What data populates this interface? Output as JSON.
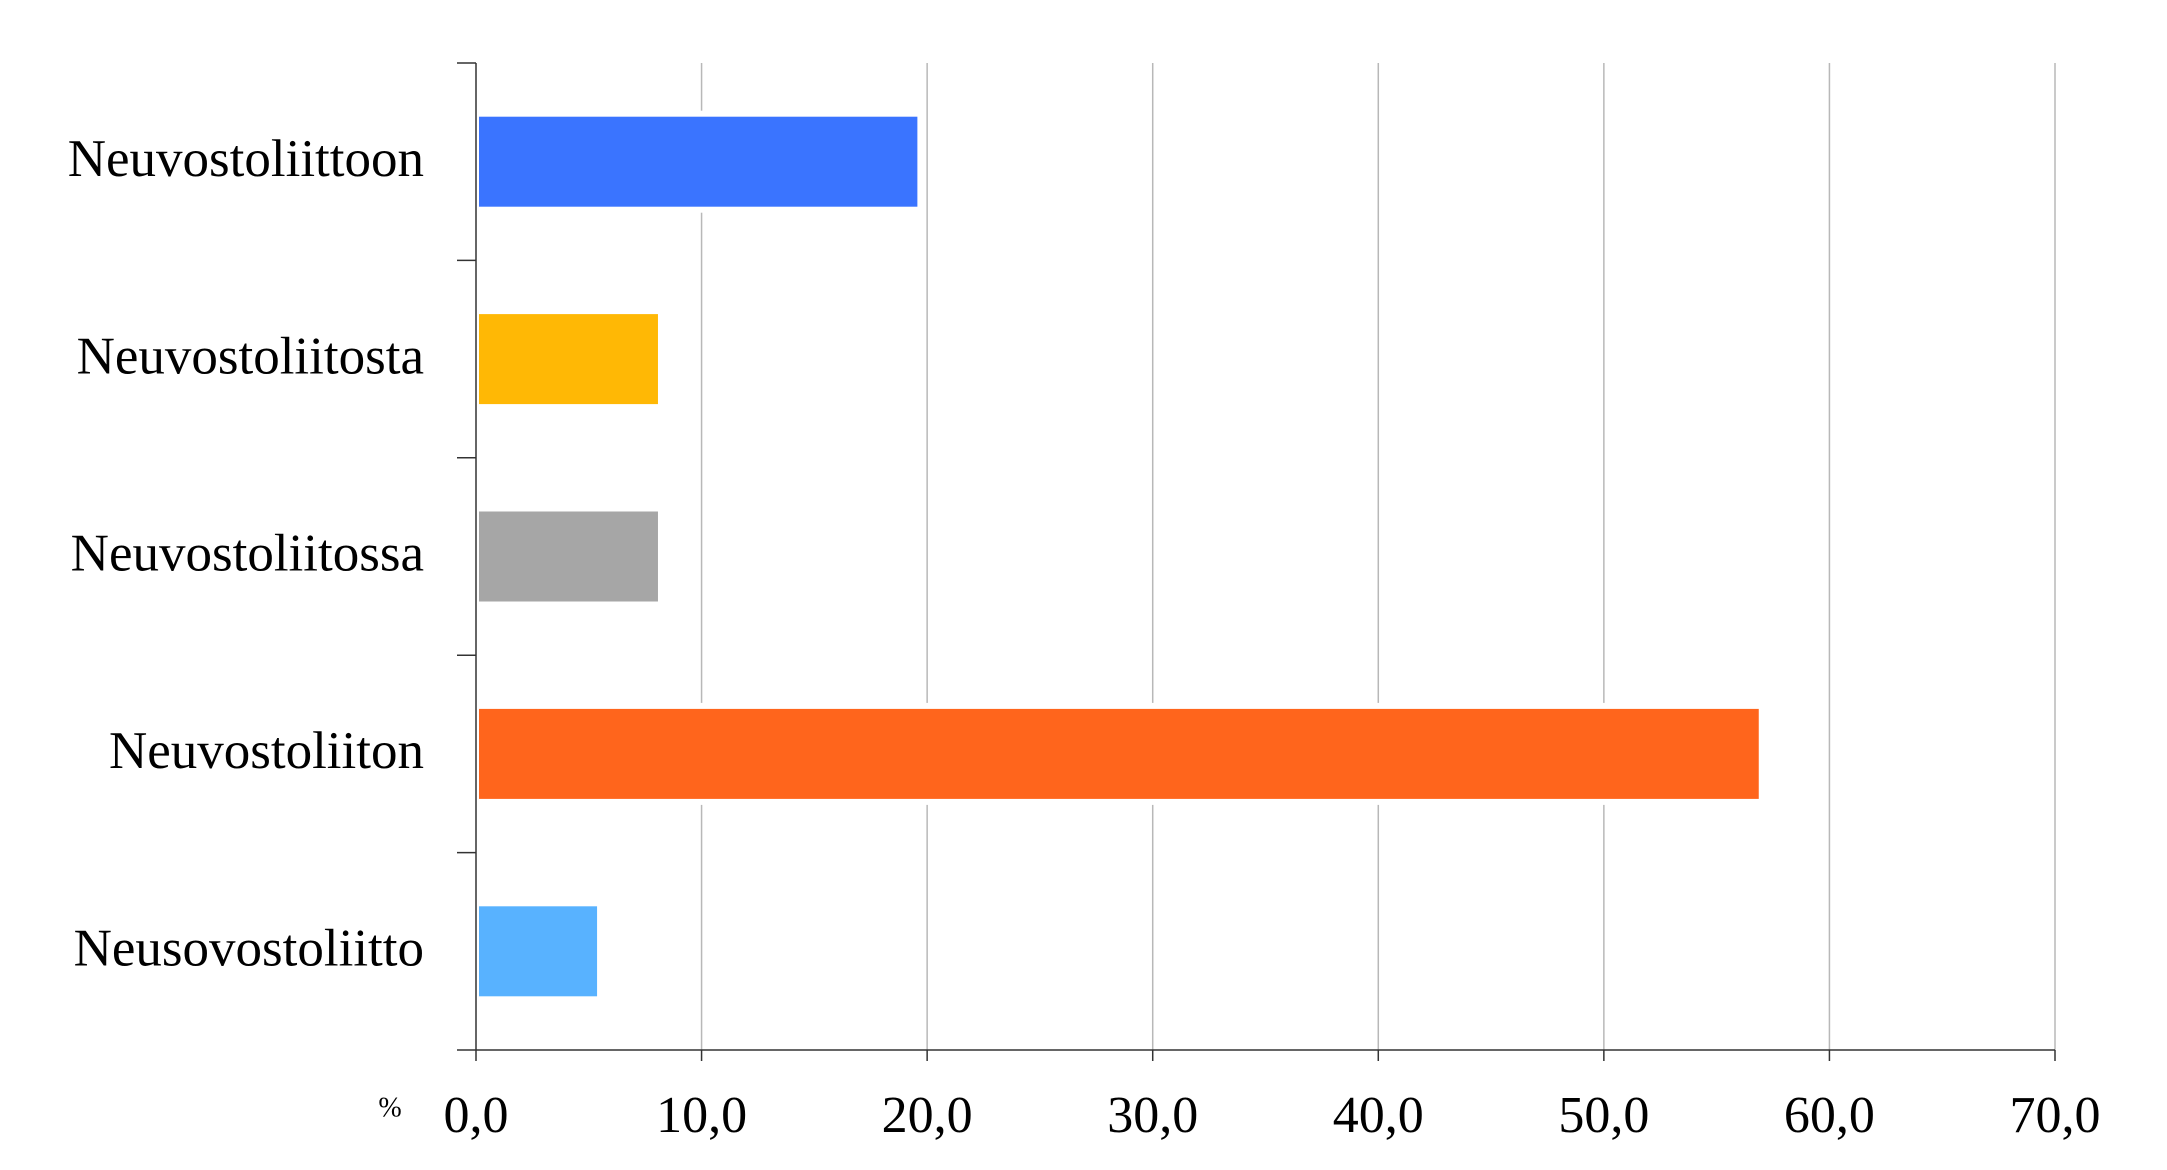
{
  "chart_data": {
    "type": "bar",
    "orientation": "horizontal",
    "xlabel": "%",
    "categories": [
      "Neuvostoliittoon",
      "Neuvostoliitosta",
      "Neuvostoliitossa",
      "Neuvostoliiton",
      "Neusovostoliitto"
    ],
    "values": [
      19.7,
      8.2,
      8.2,
      57.0,
      5.5
    ],
    "colors": [
      "#3a74ff",
      "#ffb805",
      "#a6a6a6",
      "#ff651c",
      "#58b2ff"
    ],
    "xlim": [
      0,
      70
    ],
    "xticks": [
      {
        "value": 0,
        "label": "0,0"
      },
      {
        "value": 10,
        "label": "10,0"
      },
      {
        "value": 20,
        "label": "20,0"
      },
      {
        "value": 30,
        "label": "30,0"
      },
      {
        "value": 40,
        "label": "40,0"
      },
      {
        "value": 50,
        "label": "50,0"
      },
      {
        "value": 60,
        "label": "60,0"
      },
      {
        "value": 70,
        "label": "70,0"
      }
    ],
    "grid": true
  }
}
